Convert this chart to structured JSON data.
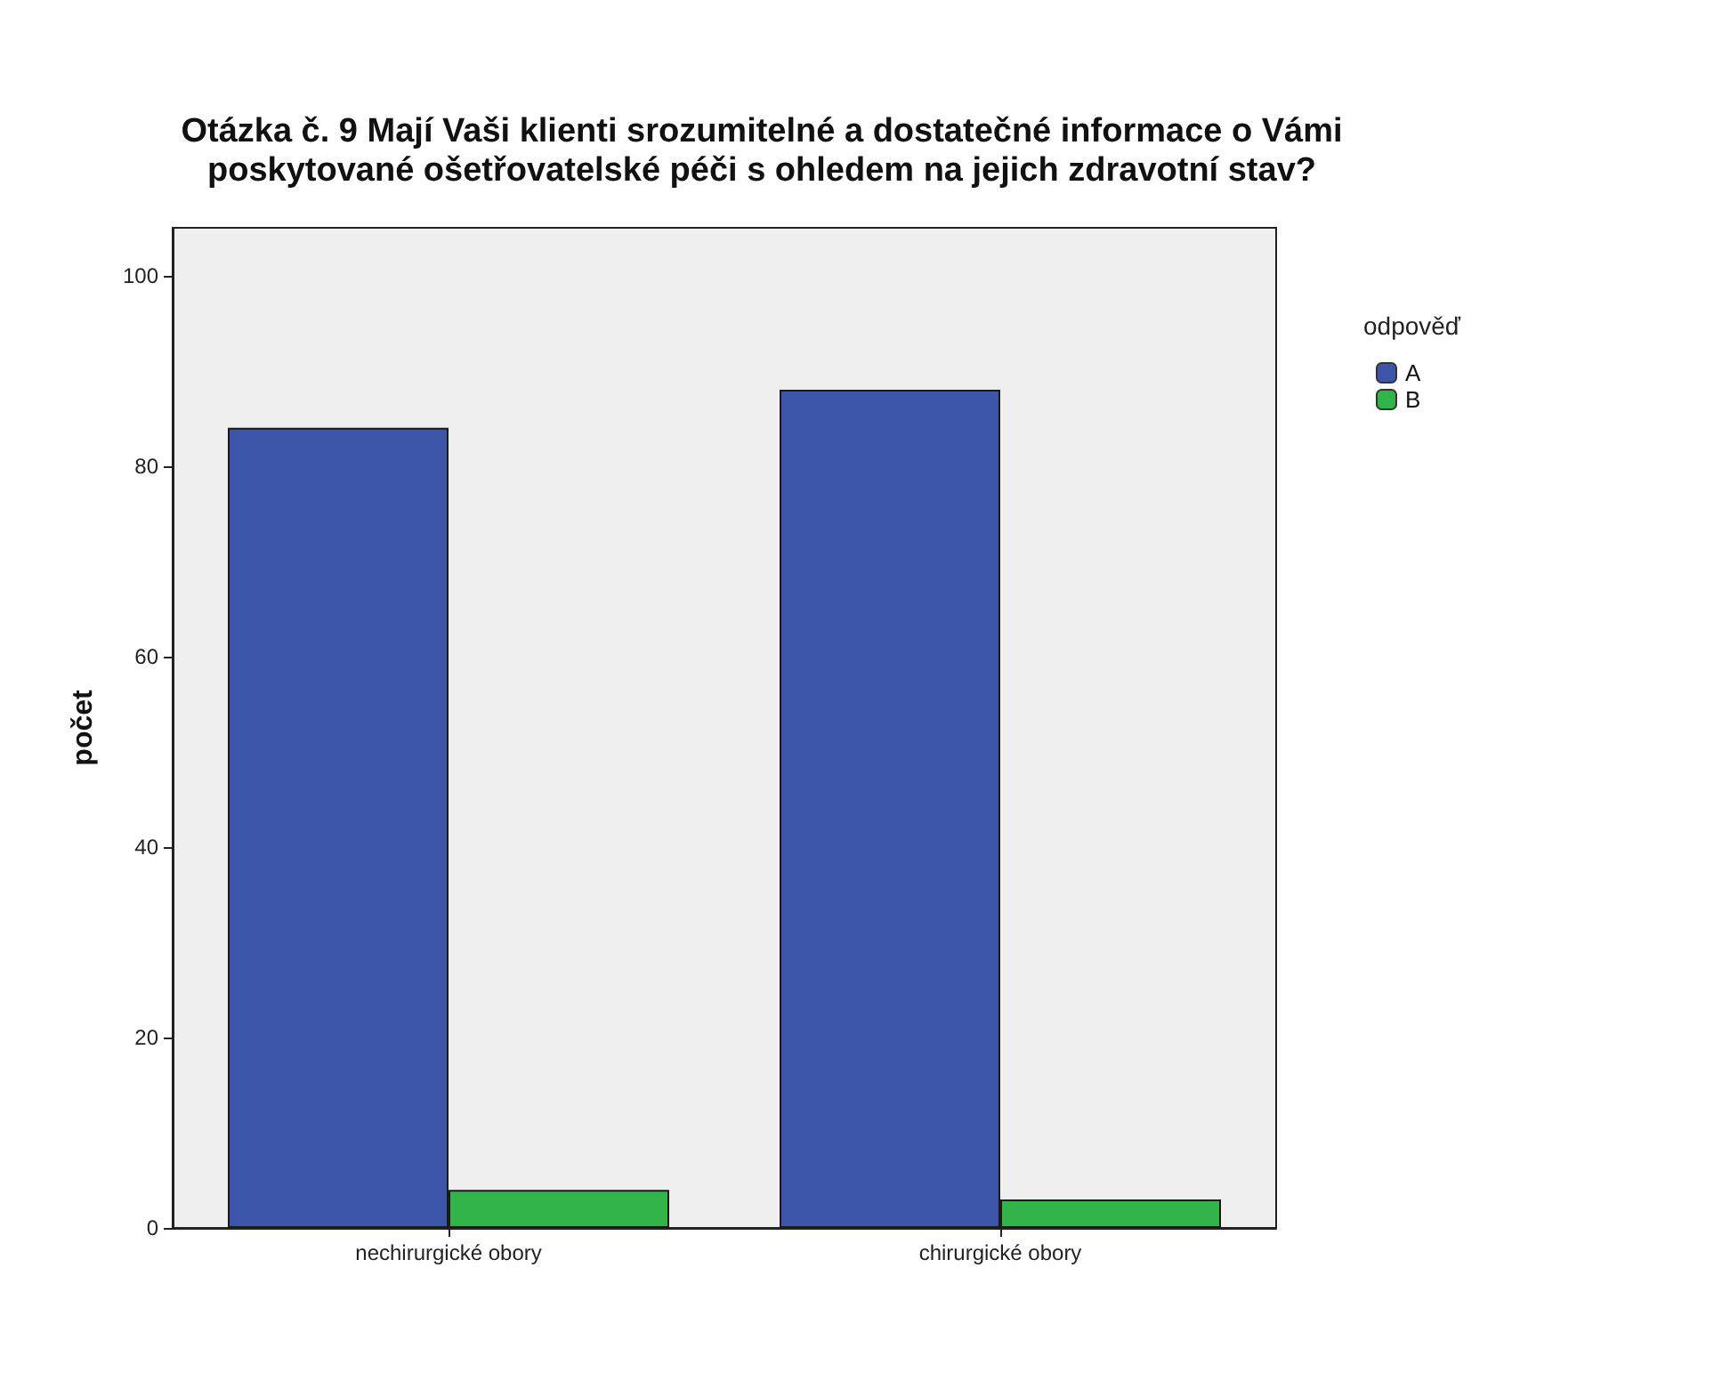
{
  "chart_data": {
    "type": "bar",
    "title": "Otázka č. 9 Mají Vaši klienti srozumitelné a dostatečné informace o Vámi\nposkytované ošetřovatelské péči s ohledem na jejich zdravotní stav?",
    "ylabel": "počet",
    "legend_title": "odpověď",
    "categories": [
      "nechirurgické obory",
      "chirurgické obory"
    ],
    "series": [
      {
        "name": "A",
        "color": "#3d55a8",
        "values": [
          84,
          88
        ]
      },
      {
        "name": "B",
        "color": "#33b44a",
        "values": [
          4,
          3
        ]
      }
    ],
    "ylim": [
      0,
      105
    ],
    "yticks": [
      0,
      20,
      40,
      60,
      80,
      100
    ],
    "grid": false,
    "legend": "top right"
  }
}
